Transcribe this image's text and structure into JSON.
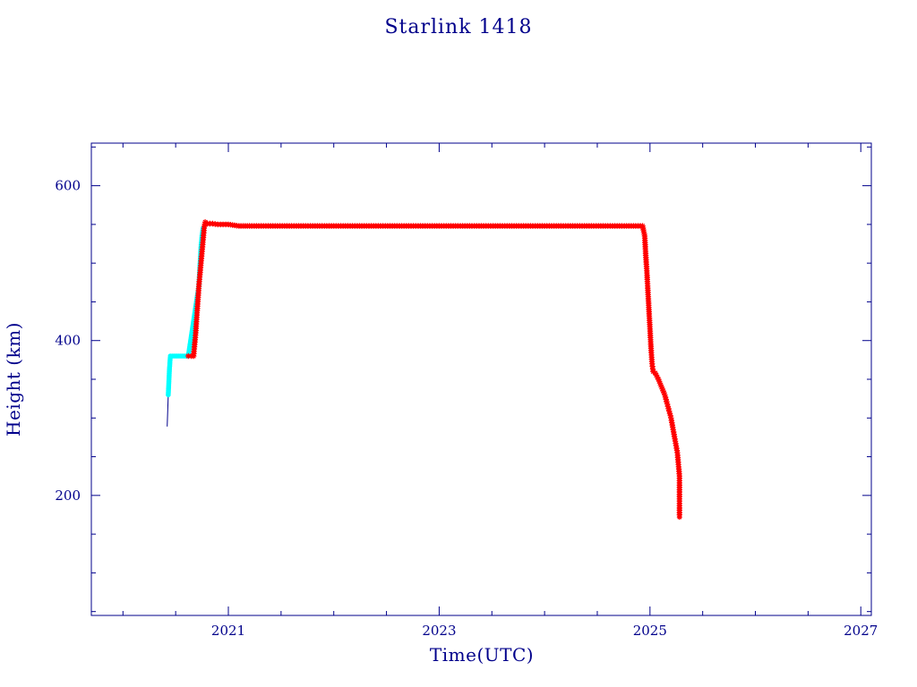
{
  "chart_data": {
    "type": "scatter",
    "title": "Starlink 1418",
    "xlabel": "Time(UTC)",
    "ylabel": "Height (km)",
    "xlim": [
      2019.7,
      2027.1
    ],
    "ylim": [
      45,
      655
    ],
    "x_ticks": [
      2021,
      2023,
      2025,
      2027
    ],
    "y_ticks": [
      200,
      400,
      600
    ],
    "grid": false,
    "legend": "none",
    "colors": {
      "axis": "#00008b",
      "line": "#00008b",
      "perigee": "#00ffff",
      "apogee": "#ff0000"
    },
    "series": [
      {
        "marker": "line",
        "color": "#00008b",
        "x": [
          2020.42,
          2020.43,
          2020.44,
          2020.47,
          2020.65,
          2020.67,
          2020.71,
          2020.75,
          2020.79,
          2020.85,
          2021.0,
          2021.2,
          2022.0,
          2023.0,
          2024.0,
          2024.94,
          2024.96,
          2024.98,
          2025.0,
          2025.01,
          2025.02,
          2025.05,
          2025.1,
          2025.15,
          2025.2,
          2025.24,
          2025.27,
          2025.28,
          2025.28
        ],
        "y": [
          289,
          330,
          365,
          380,
          380,
          385,
          440,
          510,
          552,
          550,
          550,
          548,
          548,
          548,
          548,
          548,
          530,
          480,
          420,
          385,
          360,
          357,
          345,
          325,
          300,
          270,
          240,
          215,
          172
        ]
      },
      {
        "marker": "dot",
        "color": "#00ffff",
        "x": [
          2020.43,
          2020.435,
          2020.44,
          2020.445,
          2020.45,
          2020.47,
          2020.5,
          2020.53,
          2020.56,
          2020.59,
          2020.62,
          2020.72,
          2020.73,
          2020.74,
          2020.75,
          2020.76
        ],
        "y": [
          330,
          345,
          360,
          372,
          380,
          380,
          380,
          380,
          380,
          380,
          380,
          470,
          495,
          520,
          535,
          545
        ]
      },
      {
        "marker": "star",
        "color": "#ff0000",
        "x": [
          2020.62,
          2020.65,
          2020.67,
          2020.68,
          2020.69,
          2020.7,
          2020.71,
          2020.72,
          2020.74,
          2020.76,
          2020.77,
          2020.78,
          2020.8,
          2020.85,
          2020.9,
          2020.95,
          2021.0,
          2021.1,
          2021.2,
          2021.4,
          2021.6,
          2021.8,
          2022.0,
          2022.2,
          2022.4,
          2022.6,
          2022.8,
          2023.0,
          2023.2,
          2023.4,
          2023.6,
          2023.8,
          2024.0,
          2024.2,
          2024.4,
          2024.6,
          2024.8,
          2024.93,
          2024.95,
          2024.96,
          2024.97,
          2024.98,
          2024.99,
          2025.0,
          2025.01,
          2025.02,
          2025.03,
          2025.05,
          2025.08,
          2025.11,
          2025.14,
          2025.17,
          2025.2,
          2025.22,
          2025.24,
          2025.26,
          2025.27,
          2025.28,
          2025.28
        ],
        "y": [
          380,
          380,
          380,
          395,
          410,
          430,
          450,
          470,
          500,
          530,
          545,
          553,
          551,
          551,
          550,
          550,
          550,
          548,
          548,
          548,
          548,
          548,
          548,
          548,
          548,
          548,
          548,
          548,
          548,
          548,
          548,
          548,
          548,
          548,
          548,
          548,
          548,
          548,
          535,
          510,
          490,
          465,
          440,
          415,
          390,
          370,
          360,
          358,
          350,
          340,
          330,
          315,
          300,
          285,
          270,
          255,
          240,
          225,
          172
        ]
      }
    ]
  }
}
